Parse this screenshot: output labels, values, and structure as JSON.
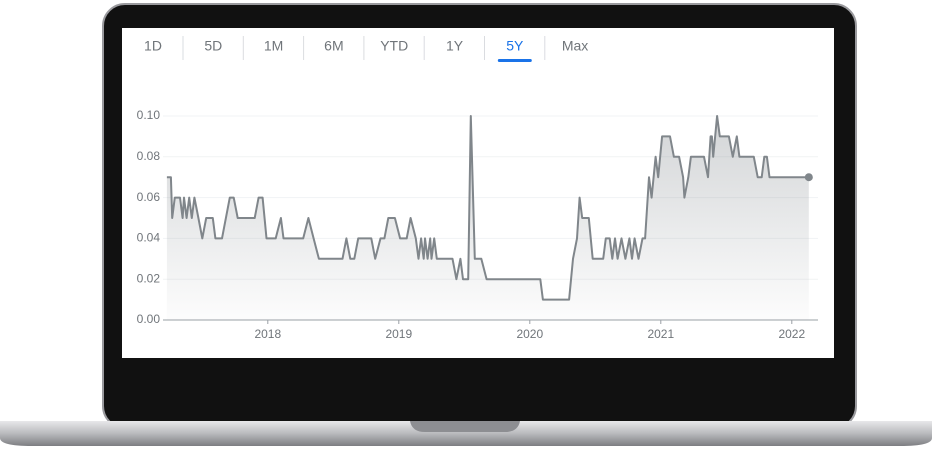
{
  "range_tabs": {
    "options": [
      "1D",
      "5D",
      "1M",
      "6M",
      "YTD",
      "1Y",
      "5Y",
      "Max"
    ],
    "selected": 6
  },
  "chart_data": {
    "type": "line",
    "color": "#80868b",
    "grid": true,
    "x": [
      2017.23,
      2017.26,
      2017.27,
      2017.29,
      2017.33,
      2017.35,
      2017.36,
      2017.38,
      2017.4,
      2017.42,
      2017.44,
      2017.47,
      2017.5,
      2017.53,
      2017.58,
      2017.6,
      2017.65,
      2017.71,
      2017.74,
      2017.77,
      2017.9,
      2017.93,
      2017.96,
      2017.99,
      2018.06,
      2018.1,
      2018.12,
      2018.27,
      2018.31,
      2018.35,
      2018.39,
      2018.57,
      2018.6,
      2018.63,
      2018.66,
      2018.69,
      2018.79,
      2018.82,
      2018.86,
      2018.89,
      2018.92,
      2018.97,
      2019.01,
      2019.06,
      2019.09,
      2019.13,
      2019.15,
      2019.17,
      2019.19,
      2019.2,
      2019.22,
      2019.24,
      2019.25,
      2019.27,
      2019.29,
      2019.41,
      2019.44,
      2019.47,
      2019.49,
      2019.53,
      2019.55,
      2019.58,
      2019.63,
      2019.67,
      2020.08,
      2020.1,
      2020.3,
      2020.33,
      2020.36,
      2020.38,
      2020.4,
      2020.45,
      2020.48,
      2020.56,
      2020.58,
      2020.61,
      2020.63,
      2020.65,
      2020.67,
      2020.7,
      2020.73,
      2020.76,
      2020.78,
      2020.8,
      2020.83,
      2020.86,
      2020.88,
      2020.91,
      2020.93,
      2020.96,
      2020.98,
      2021.01,
      2021.07,
      2021.1,
      2021.14,
      2021.17,
      2021.18,
      2021.21,
      2021.23,
      2021.33,
      2021.36,
      2021.38,
      2021.39,
      2021.4,
      2021.43,
      2021.45,
      2021.52,
      2021.55,
      2021.58,
      2021.6,
      2021.71,
      2021.74,
      2021.77,
      2021.79,
      2021.81,
      2021.83,
      2022.13
    ],
    "values": [
      0.07,
      0.07,
      0.05,
      0.06,
      0.06,
      0.05,
      0.06,
      0.05,
      0.06,
      0.05,
      0.06,
      0.05,
      0.04,
      0.05,
      0.05,
      0.04,
      0.04,
      0.06,
      0.06,
      0.05,
      0.05,
      0.06,
      0.06,
      0.04,
      0.04,
      0.05,
      0.04,
      0.04,
      0.05,
      0.04,
      0.03,
      0.03,
      0.04,
      0.03,
      0.03,
      0.04,
      0.04,
      0.03,
      0.04,
      0.04,
      0.05,
      0.05,
      0.04,
      0.04,
      0.05,
      0.04,
      0.03,
      0.04,
      0.03,
      0.04,
      0.03,
      0.04,
      0.03,
      0.04,
      0.03,
      0.03,
      0.02,
      0.03,
      0.02,
      0.02,
      0.1,
      0.03,
      0.03,
      0.02,
      0.02,
      0.01,
      0.01,
      0.03,
      0.04,
      0.06,
      0.05,
      0.05,
      0.03,
      0.03,
      0.04,
      0.04,
      0.03,
      0.04,
      0.03,
      0.04,
      0.03,
      0.04,
      0.03,
      0.04,
      0.03,
      0.04,
      0.04,
      0.07,
      0.06,
      0.08,
      0.07,
      0.09,
      0.09,
      0.08,
      0.08,
      0.07,
      0.06,
      0.07,
      0.08,
      0.08,
      0.07,
      0.09,
      0.09,
      0.08,
      0.1,
      0.09,
      0.09,
      0.08,
      0.09,
      0.08,
      0.08,
      0.07,
      0.07,
      0.08,
      0.08,
      0.07,
      0.07
    ],
    "xlim": [
      2017.2,
      2022.2
    ],
    "xticks": [
      2018,
      2019,
      2020,
      2021,
      2022
    ],
    "ylim": [
      0,
      0.1
    ],
    "yticks": [
      {
        "value": 0,
        "label": "0.00"
      },
      {
        "value": 0.02,
        "label": "0.02"
      },
      {
        "value": 0.04,
        "label": "0.04"
      },
      {
        "value": 0.06,
        "label": "0.06"
      },
      {
        "value": 0.08,
        "label": "0.08"
      },
      {
        "value": 0.1,
        "label": "0.10"
      }
    ]
  }
}
